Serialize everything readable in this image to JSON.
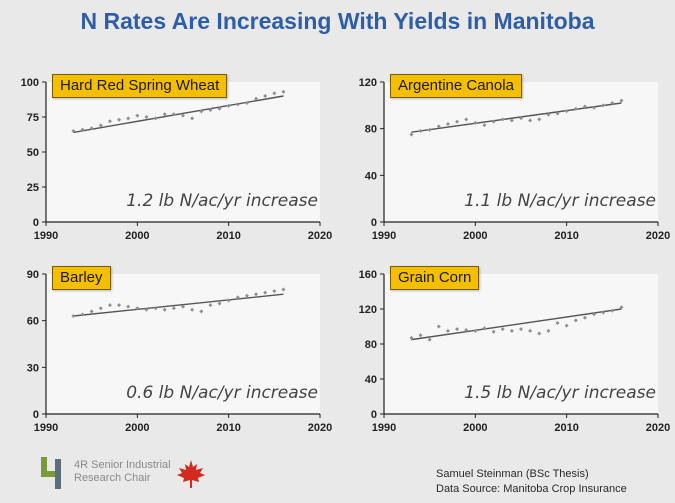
{
  "slide": {
    "title": "N Rates Are Increasing With Yields in Manitoba"
  },
  "colors": {
    "title": "#2e5ea8",
    "label_box": "#f4bf00",
    "trend_line": "#555555",
    "points": "#8f8f8f",
    "plot_bg": "#f7f7f7"
  },
  "chart_data": [
    {
      "type": "scatter",
      "title": "Hard Red Spring Wheat",
      "annotation": "1.2 lb N/ac/yr increase",
      "xlim": [
        1990,
        2020
      ],
      "ylim": [
        0,
        100
      ],
      "x_ticks": [
        1990,
        2000,
        2010,
        2020
      ],
      "y_ticks": [
        0,
        25,
        50,
        75,
        100
      ],
      "x": [
        1993,
        1994,
        1995,
        1996,
        1997,
        1998,
        1999,
        2000,
        2001,
        2002,
        2003,
        2004,
        2005,
        2006,
        2007,
        2008,
        2009,
        2010,
        2011,
        2012,
        2013,
        2014,
        2015,
        2016
      ],
      "y": [
        65,
        66,
        67,
        69,
        72,
        73,
        74,
        76,
        75,
        74,
        77,
        77,
        76,
        74,
        79,
        80,
        81,
        83,
        84,
        85,
        88,
        90,
        92,
        93
      ],
      "trend": {
        "x": [
          1993,
          2016
        ],
        "y": [
          64,
          90
        ]
      }
    },
    {
      "type": "scatter",
      "title": "Argentine Canola",
      "annotation": "1.1 lb N/ac/yr increase",
      "xlim": [
        1990,
        2020
      ],
      "ylim": [
        0,
        120
      ],
      "x_ticks": [
        1990,
        2000,
        2010,
        2020
      ],
      "y_ticks": [
        0,
        40,
        80,
        120
      ],
      "x": [
        1993,
        1994,
        1995,
        1996,
        1997,
        1998,
        1999,
        2000,
        2001,
        2002,
        2003,
        2004,
        2005,
        2006,
        2007,
        2008,
        2009,
        2010,
        2011,
        2012,
        2013,
        2014,
        2015,
        2016
      ],
      "y": [
        75,
        78,
        79,
        82,
        84,
        86,
        88,
        85,
        83,
        86,
        88,
        87,
        89,
        87,
        88,
        92,
        93,
        95,
        97,
        99,
        98,
        100,
        102,
        104
      ],
      "trend": {
        "x": [
          1993,
          2016
        ],
        "y": [
          77,
          102
        ]
      }
    },
    {
      "type": "scatter",
      "title": "Barley",
      "annotation": "0.6 lb N/ac/yr increase",
      "xlim": [
        1990,
        2020
      ],
      "ylim": [
        0,
        90
      ],
      "x_ticks": [
        1990,
        2000,
        2010,
        2020
      ],
      "y_ticks": [
        0,
        30,
        60,
        90
      ],
      "x": [
        1993,
        1994,
        1995,
        1996,
        1997,
        1998,
        1999,
        2000,
        2001,
        2002,
        2003,
        2004,
        2005,
        2006,
        2007,
        2008,
        2009,
        2010,
        2011,
        2012,
        2013,
        2014,
        2015,
        2016
      ],
      "y": [
        63,
        64,
        66,
        68,
        70,
        70,
        69,
        68,
        67,
        68,
        67,
        68,
        69,
        67,
        66,
        70,
        71,
        73,
        75,
        76,
        77,
        78,
        79,
        80
      ],
      "trend": {
        "x": [
          1993,
          2016
        ],
        "y": [
          63,
          77
        ]
      }
    },
    {
      "type": "scatter",
      "title": "Grain Corn",
      "annotation": "1.5 lb N/ac/yr increase",
      "xlim": [
        1990,
        2020
      ],
      "ylim": [
        0,
        160
      ],
      "x_ticks": [
        1990,
        2000,
        2010,
        2020
      ],
      "y_ticks": [
        0,
        40,
        80,
        120,
        160
      ],
      "x": [
        1993,
        1994,
        1995,
        1996,
        1997,
        1998,
        1999,
        2000,
        2001,
        2002,
        2003,
        2004,
        2005,
        2006,
        2007,
        2008,
        2009,
        2010,
        2011,
        2012,
        2013,
        2014,
        2015,
        2016
      ],
      "y": [
        87,
        90,
        85,
        100,
        95,
        97,
        96,
        95,
        98,
        94,
        97,
        95,
        97,
        95,
        92,
        95,
        104,
        101,
        107,
        110,
        114,
        116,
        118,
        122
      ],
      "trend": {
        "x": [
          1993,
          2016
        ],
        "y": [
          85,
          120
        ]
      }
    }
  ],
  "logo": {
    "line1": "4R Senior Industrial",
    "line2": "Research Chair"
  },
  "footer": {
    "line1": "Samuel Steinman (BSc Thesis)",
    "line2": "Data Source: Manitoba Crop Insurance"
  }
}
